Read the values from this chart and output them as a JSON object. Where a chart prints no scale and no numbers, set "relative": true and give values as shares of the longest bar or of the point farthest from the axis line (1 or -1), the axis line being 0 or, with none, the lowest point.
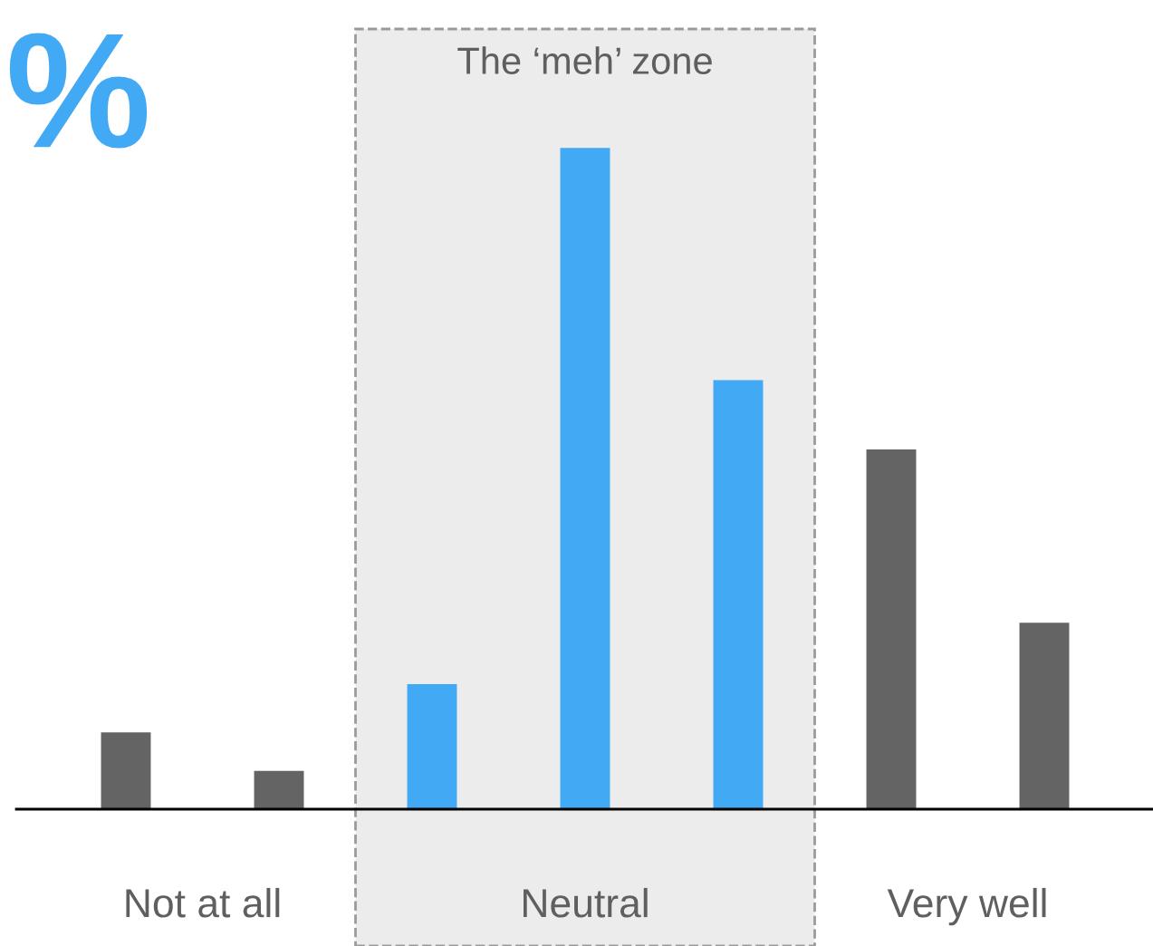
{
  "chart_data": {
    "type": "bar",
    "relative": true,
    "categories": [
      null,
      null,
      null,
      null,
      null,
      null,
      null
    ],
    "values": [
      0.116,
      0.058,
      0.189,
      1,
      0.649,
      0.544,
      0.282
    ],
    "colors": [
      "#646464",
      "#646464",
      "#42a9f5",
      "#42a9f5",
      "#42a9f5",
      "#646464",
      "#646464"
    ],
    "annotations": [
      "%",
      "Not at all",
      "Neutral",
      "Very well",
      "The ‘meh’ zone"
    ]
  }
}
